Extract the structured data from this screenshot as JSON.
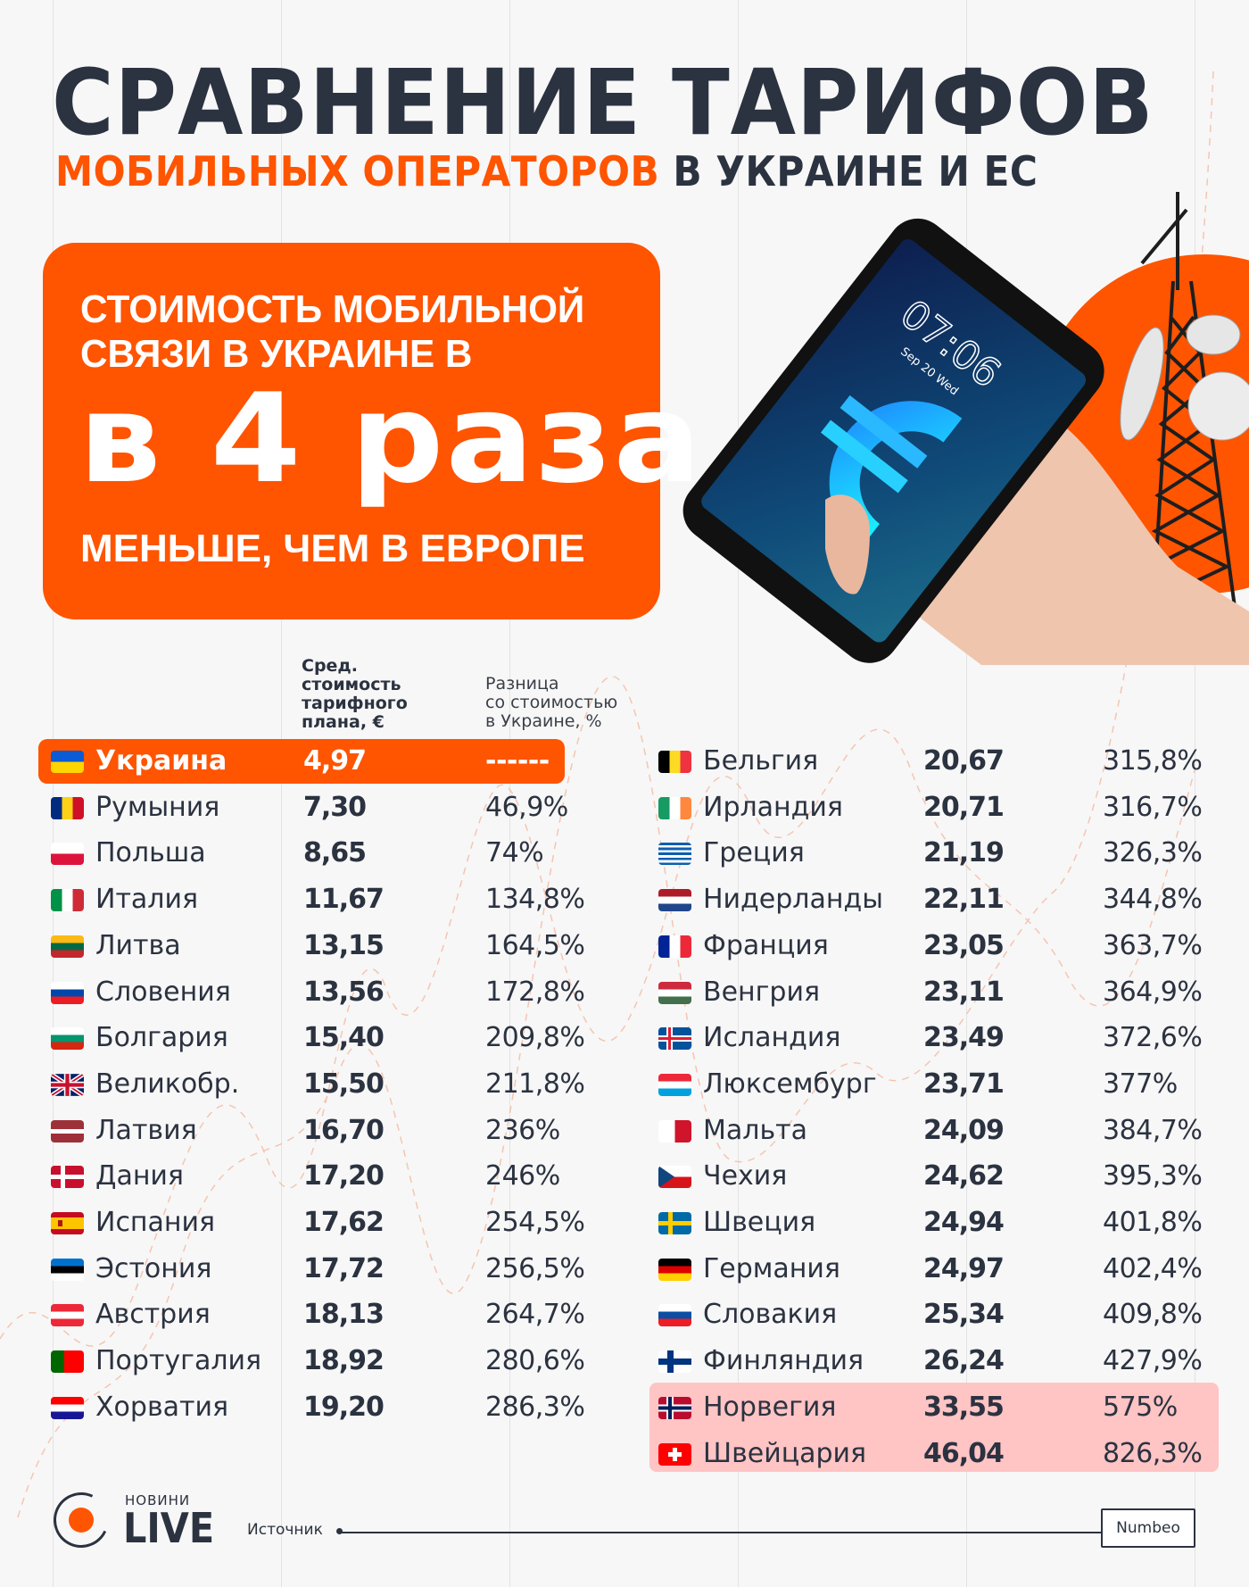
{
  "title": {
    "main": "СРАВНЕНИЕ ТАРИФОВ",
    "sub_accent": "МОБИЛЬНЫХ ОПЕРАТОРОВ",
    "sub_rest": " В УКРАИНЕ И ЕС"
  },
  "hero": {
    "line1a": "СТОИМОСТЬ МОБИЛЬНОЙ",
    "line1b": "СВЯЗИ В УКРАИНЕ В",
    "big": "в 4 раза",
    "line3": "МЕНЬШЕ, ЧЕМ В ЕВРОПЕ"
  },
  "illustration": {
    "phone_time": "07:06",
    "phone_date": "Sep 20  Wed",
    "phone_icon": "euro-icon"
  },
  "table": {
    "header_cost": "Сред. стоимость тарифного плана, €",
    "header_cost_lines": [
      "Сред.",
      "стоимость",
      "тарифного",
      "плана, €"
    ],
    "header_diff_lines": [
      "Разница",
      "со стоимостью",
      "в Украине, %"
    ],
    "left": [
      {
        "country": "Украина",
        "value": "4,97",
        "pct": "------",
        "flag": "ua",
        "highlight": "orange"
      },
      {
        "country": "Румыния",
        "value": "7,30",
        "pct": "46,9%",
        "flag": "ro"
      },
      {
        "country": "Польша",
        "value": "8,65",
        "pct": "74%",
        "flag": "pl"
      },
      {
        "country": "Италия",
        "value": "11,67",
        "pct": "134,8%",
        "flag": "it"
      },
      {
        "country": "Литва",
        "value": "13,15",
        "pct": "164,5%",
        "flag": "lt"
      },
      {
        "country": "Словения",
        "value": "13,56",
        "pct": "172,8%",
        "flag": "si"
      },
      {
        "country": "Болгария",
        "value": "15,40",
        "pct": "209,8%",
        "flag": "bg"
      },
      {
        "country": "Великобр.",
        "value": "15,50",
        "pct": "211,8%",
        "flag": "gb"
      },
      {
        "country": "Латвия",
        "value": "16,70",
        "pct": "236%",
        "flag": "lv"
      },
      {
        "country": "Дания",
        "value": "17,20",
        "pct": "246%",
        "flag": "dk"
      },
      {
        "country": "Испания",
        "value": "17,62",
        "pct": "254,5%",
        "flag": "es"
      },
      {
        "country": "Эстония",
        "value": "17,72",
        "pct": "256,5%",
        "flag": "ee"
      },
      {
        "country": "Австрия",
        "value": "18,13",
        "pct": "264,7%",
        "flag": "at"
      },
      {
        "country": "Португалия",
        "value": "18,92",
        "pct": "280,6%",
        "flag": "pt"
      },
      {
        "country": "Хорватия",
        "value": "19,20",
        "pct": "286,3%",
        "flag": "hr"
      }
    ],
    "right": [
      {
        "country": "Бельгия",
        "value": "20,67",
        "pct": "315,8%",
        "flag": "be"
      },
      {
        "country": "Ирландия",
        "value": "20,71",
        "pct": "316,7%",
        "flag": "ie"
      },
      {
        "country": "Греция",
        "value": "21,19",
        "pct": "326,3%",
        "flag": "gr"
      },
      {
        "country": "Нидерланды",
        "value": "22,11",
        "pct": "344,8%",
        "flag": "nl"
      },
      {
        "country": "Франция",
        "value": "23,05",
        "pct": "363,7%",
        "flag": "fr"
      },
      {
        "country": "Венгрия",
        "value": "23,11",
        "pct": "364,9%",
        "flag": "hu"
      },
      {
        "country": "Исландия",
        "value": "23,49",
        "pct": "372,6%",
        "flag": "is"
      },
      {
        "country": "Люксембург",
        "value": "23,71",
        "pct": "377%",
        "flag": "lu"
      },
      {
        "country": "Мальта",
        "value": "24,09",
        "pct": "384,7%",
        "flag": "mt"
      },
      {
        "country": "Чехия",
        "value": "24,62",
        "pct": "395,3%",
        "flag": "cz"
      },
      {
        "country": "Швеция",
        "value": "24,94",
        "pct": "401,8%",
        "flag": "se"
      },
      {
        "country": "Германия",
        "value": "24,97",
        "pct": "402,4%",
        "flag": "de"
      },
      {
        "country": "Словакия",
        "value": "25,34",
        "pct": "409,8%",
        "flag": "sk"
      },
      {
        "country": "Финляндия",
        "value": "26,24",
        "pct": "427,9%",
        "flag": "fi"
      },
      {
        "country": "Норвегия",
        "value": "33,55",
        "pct": "575%",
        "flag": "no",
        "highlight": "pink"
      },
      {
        "country": "Швейцария",
        "value": "46,04",
        "pct": "826,3%",
        "flag": "ch",
        "highlight": "pink"
      }
    ]
  },
  "footer": {
    "logo_small": "НОВИНИ",
    "logo_big": "LIVE",
    "source_label": "Источник",
    "source_value": "Numbeo"
  },
  "colors": {
    "accent": "#ff5400",
    "dark": "#2b3240",
    "highlight_pink": "#ffc4c4",
    "background": "#f7f7f7"
  }
}
